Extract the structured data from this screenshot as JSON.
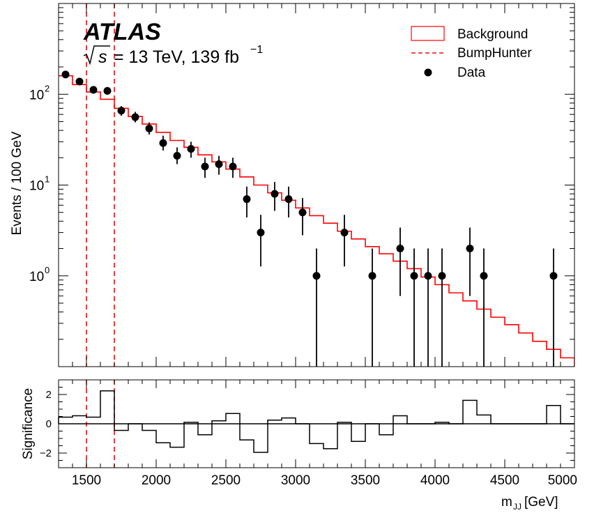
{
  "chart_data": [
    {
      "type": "step",
      "panel": "main",
      "experiment_label": "ATLAS",
      "energy_label": {
        "sqrt": "s",
        "text": "= 13 TeV, 139 fb",
        "sup": "−1"
      },
      "ylabel": "Events / 100 GeV",
      "yscale": "log",
      "ylim": [
        0.1,
        1000
      ],
      "xlim": [
        1300,
        5000
      ],
      "y_ticklabels": [
        {
          "base": "10",
          "exp": "0"
        },
        {
          "base": "10",
          "exp": "1"
        },
        {
          "base": "10",
          "exp": "2"
        }
      ],
      "legend": {
        "placement": "top-right",
        "entries": [
          "Background",
          "BumpHunter",
          "Data"
        ]
      },
      "bin_edges": [
        1300,
        1400,
        1500,
        1600,
        1700,
        1800,
        1900,
        2000,
        2100,
        2200,
        2300,
        2400,
        2500,
        2600,
        2700,
        2800,
        2900,
        3000,
        3100,
        3200,
        3300,
        3400,
        3500,
        3600,
        3700,
        3800,
        3900,
        4000,
        4100,
        4200,
        4300,
        4400,
        4500,
        4600,
        4700,
        4800,
        4900,
        5000
      ],
      "background": [
        160,
        128,
        106,
        88,
        70,
        57,
        47,
        38,
        31,
        26,
        21.5,
        18,
        15,
        12.3,
        10,
        8.2,
        6.8,
        5.6,
        4.6,
        3.8,
        3.1,
        2.55,
        2.1,
        1.75,
        1.45,
        1.2,
        0.97,
        0.8,
        0.65,
        0.53,
        0.43,
        0.35,
        0.29,
        0.235,
        0.19,
        0.155,
        0.125
      ],
      "data_points": [
        {
          "x": 1350,
          "y": 165,
          "lo": 153,
          "hi": 177
        },
        {
          "x": 1450,
          "y": 138,
          "lo": 127,
          "hi": 149
        },
        {
          "x": 1550,
          "y": 112,
          "lo": 102,
          "hi": 123
        },
        {
          "x": 1650,
          "y": 109,
          "lo": 99,
          "hi": 120
        },
        {
          "x": 1750,
          "y": 66,
          "lo": 58,
          "hi": 74
        },
        {
          "x": 1850,
          "y": 56,
          "lo": 49,
          "hi": 64
        },
        {
          "x": 1950,
          "y": 42,
          "lo": 36,
          "hi": 49
        },
        {
          "x": 2050,
          "y": 29,
          "lo": 24,
          "hi": 35
        },
        {
          "x": 2150,
          "y": 21,
          "lo": 17,
          "hi": 26
        },
        {
          "x": 2250,
          "y": 25,
          "lo": 20,
          "hi": 30
        },
        {
          "x": 2350,
          "y": 16,
          "lo": 12,
          "hi": 20
        },
        {
          "x": 2450,
          "y": 17,
          "lo": 13,
          "hi": 21
        },
        {
          "x": 2550,
          "y": 16,
          "lo": 12,
          "hi": 20
        },
        {
          "x": 2650,
          "y": 7,
          "lo": 4.4,
          "hi": 9.6
        },
        {
          "x": 2750,
          "y": 3,
          "lo": 1.27,
          "hi": 4.7
        },
        {
          "x": 2850,
          "y": 8,
          "lo": 5.2,
          "hi": 10.8
        },
        {
          "x": 2950,
          "y": 7,
          "lo": 4.4,
          "hi": 9.6
        },
        {
          "x": 3050,
          "y": 5,
          "lo": 2.8,
          "hi": 7.2
        },
        {
          "x": 3150,
          "y": 1,
          "lo": 0.05,
          "hi": 2.0
        },
        {
          "x": 3350,
          "y": 3,
          "lo": 1.27,
          "hi": 4.7
        },
        {
          "x": 3550,
          "y": 1,
          "lo": 0.05,
          "hi": 2.0
        },
        {
          "x": 3750,
          "y": 2,
          "lo": 0.6,
          "hi": 3.4
        },
        {
          "x": 3850,
          "y": 1,
          "lo": 0.05,
          "hi": 2.0
        },
        {
          "x": 3950,
          "y": 1,
          "lo": 0.05,
          "hi": 2.0
        },
        {
          "x": 4050,
          "y": 1,
          "lo": 0.05,
          "hi": 2.0
        },
        {
          "x": 4250,
          "y": 2,
          "lo": 0.6,
          "hi": 3.4
        },
        {
          "x": 4350,
          "y": 1,
          "lo": 0.05,
          "hi": 2.0
        },
        {
          "x": 4850,
          "y": 1,
          "lo": 0.05,
          "hi": 2.0
        }
      ],
      "bumphunter_window": [
        1500,
        1700
      ],
      "colors": {
        "background": "#ff0000",
        "bumphunter": "#dd1111",
        "data": "#000000"
      }
    },
    {
      "type": "step",
      "panel": "ratio",
      "ylabel": "Significance",
      "xlabel": "m",
      "xlabel_sub": "JJ",
      "xlabel_unit": " [GeV]",
      "ylim": [
        -3,
        3
      ],
      "yticks": [
        -2,
        0,
        2
      ],
      "y_ticklabels": [
        "−2",
        "0",
        "2"
      ],
      "xlim": [
        1300,
        5000
      ],
      "xticks": [
        1500,
        2000,
        2500,
        3000,
        3500,
        4000,
        4500,
        5000
      ],
      "bin_edges": [
        1300,
        1400,
        1500,
        1600,
        1700,
        1800,
        1900,
        2000,
        2100,
        2200,
        2300,
        2400,
        2500,
        2600,
        2700,
        2800,
        2900,
        3000,
        3100,
        3200,
        3300,
        3400,
        3500,
        3600,
        3700,
        3800,
        3900,
        4000,
        4100,
        4200,
        4300,
        4400,
        4500,
        4600,
        4700,
        4800,
        4900,
        5000
      ],
      "significance": [
        0.45,
        0.55,
        0.45,
        2.25,
        -0.45,
        0,
        -0.45,
        -1.3,
        -1.6,
        0.1,
        -0.75,
        0.2,
        0.7,
        -1.1,
        -1.95,
        0.25,
        0.4,
        0,
        -1.35,
        -1.7,
        0.1,
        -1.2,
        0,
        -0.75,
        0.55,
        0,
        0,
        0.1,
        0,
        1.6,
        0.6,
        0,
        0,
        0,
        0,
        1.25,
        0
      ],
      "bumphunter_window": [
        1500,
        1700
      ]
    }
  ]
}
